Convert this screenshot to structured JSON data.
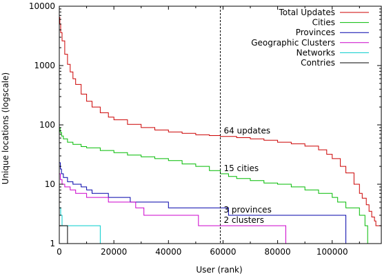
{
  "chart_data": {
    "type": "line",
    "title": "",
    "xlabel": "User (rank)",
    "ylabel": "Unique locations (logscale)",
    "xlim": [
      0,
      118000
    ],
    "ylim": [
      1,
      10000
    ],
    "yscale": "log",
    "x_ticks": [
      0,
      20000,
      40000,
      60000,
      80000,
      100000
    ],
    "x_tick_labels": [
      "0",
      "20000",
      "40000",
      "60000",
      "80000",
      "100000"
    ],
    "y_ticks": [
      1,
      10,
      100,
      1000,
      10000
    ],
    "y_tick_labels": [
      "1",
      "10",
      "100",
      "1000",
      "10000"
    ],
    "grid": false,
    "legend_position": "top-right",
    "reference_line": {
      "x": 59000,
      "style": "dashed"
    },
    "annotations": [
      {
        "text": "64 updates",
        "x": 59500,
        "y": 64
      },
      {
        "text": "15 cities",
        "x": 59500,
        "y": 15
      },
      {
        "text": "3 provinces",
        "x": 59500,
        "y": 3
      },
      {
        "text": "2 clusters",
        "x": 59500,
        "y": 2
      }
    ],
    "series": [
      {
        "name": "Total Updates",
        "color": "#cc0000",
        "points": [
          [
            0,
            6500
          ],
          [
            200,
            5000
          ],
          [
            500,
            3600
          ],
          [
            1000,
            2600
          ],
          [
            2000,
            1550
          ],
          [
            3000,
            1050
          ],
          [
            4000,
            780
          ],
          [
            5000,
            600
          ],
          [
            6000,
            480
          ],
          [
            8000,
            330
          ],
          [
            10000,
            250
          ],
          [
            12000,
            200
          ],
          [
            15000,
            160
          ],
          [
            18000,
            135
          ],
          [
            20000,
            122
          ],
          [
            25000,
            102
          ],
          [
            30000,
            90
          ],
          [
            35000,
            82
          ],
          [
            40000,
            76
          ],
          [
            45000,
            72
          ],
          [
            50000,
            68
          ],
          [
            55000,
            66
          ],
          [
            59000,
            64
          ],
          [
            65000,
            61
          ],
          [
            70000,
            58
          ],
          [
            75000,
            55
          ],
          [
            80000,
            51
          ],
          [
            85000,
            48
          ],
          [
            90000,
            44
          ],
          [
            95000,
            38
          ],
          [
            98000,
            32
          ],
          [
            100000,
            27
          ],
          [
            103000,
            20
          ],
          [
            105000,
            15.5
          ],
          [
            108000,
            10
          ],
          [
            110000,
            7
          ],
          [
            111000,
            5.8
          ],
          [
            112500,
            4.5
          ],
          [
            113500,
            3.5
          ],
          [
            114500,
            2.8
          ],
          [
            115500,
            2.4
          ],
          [
            116000,
            2
          ],
          [
            118000,
            2
          ]
        ]
      },
      {
        "name": "Cities",
        "color": "#00bb00",
        "points": [
          [
            0,
            90
          ],
          [
            300,
            75
          ],
          [
            800,
            65
          ],
          [
            1500,
            58
          ],
          [
            3000,
            51
          ],
          [
            5000,
            47
          ],
          [
            8000,
            43
          ],
          [
            10000,
            41
          ],
          [
            15000,
            37
          ],
          [
            20000,
            34
          ],
          [
            25000,
            31
          ],
          [
            30000,
            29
          ],
          [
            35000,
            27
          ],
          [
            40000,
            25
          ],
          [
            45000,
            22
          ],
          [
            50000,
            20
          ],
          [
            55000,
            17
          ],
          [
            59000,
            15
          ],
          [
            62000,
            13.5
          ],
          [
            65000,
            12.5
          ],
          [
            70000,
            11.5
          ],
          [
            75000,
            10.5
          ],
          [
            80000,
            10
          ],
          [
            85000,
            9
          ],
          [
            90000,
            8
          ],
          [
            95000,
            7
          ],
          [
            100000,
            6
          ],
          [
            102000,
            5
          ],
          [
            105000,
            4
          ],
          [
            110000,
            3
          ],
          [
            112000,
            2
          ],
          [
            113000,
            1
          ]
        ]
      },
      {
        "name": "Provinces",
        "color": "#0000aa",
        "points": [
          [
            0,
            23
          ],
          [
            400,
            18
          ],
          [
            800,
            15
          ],
          [
            1500,
            13
          ],
          [
            3000,
            11
          ],
          [
            5000,
            10
          ],
          [
            8000,
            9
          ],
          [
            10000,
            8
          ],
          [
            12000,
            7
          ],
          [
            18000,
            6
          ],
          [
            26000,
            5
          ],
          [
            40000,
            4
          ],
          [
            62000,
            3
          ],
          [
            105000,
            2
          ],
          [
            105000,
            1
          ]
        ]
      },
      {
        "name": "Geographic Clusters",
        "color": "#cc00cc",
        "points": [
          [
            0,
            15
          ],
          [
            400,
            12
          ],
          [
            1000,
            10
          ],
          [
            2000,
            9
          ],
          [
            4000,
            8
          ],
          [
            6000,
            7
          ],
          [
            10000,
            6
          ],
          [
            18000,
            5
          ],
          [
            28000,
            4
          ],
          [
            31000,
            3
          ],
          [
            51000,
            2
          ],
          [
            83000,
            2
          ],
          [
            83000,
            1
          ]
        ]
      },
      {
        "name": "Networks",
        "color": "#00cccc",
        "points": [
          [
            0,
            4
          ],
          [
            500,
            3
          ],
          [
            1000,
            2
          ],
          [
            15000,
            2
          ],
          [
            15000,
            1
          ]
        ]
      },
      {
        "name": "Contries",
        "color": "#000000",
        "points": [
          [
            0,
            2
          ],
          [
            3000,
            2
          ],
          [
            3000,
            1
          ]
        ]
      }
    ]
  }
}
